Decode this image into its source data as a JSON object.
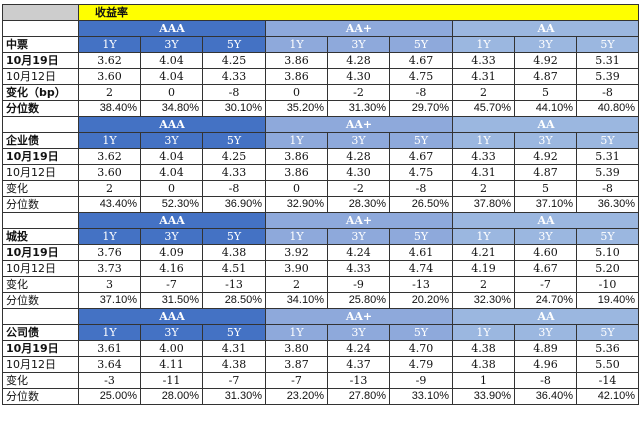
{
  "title": "收益率",
  "group_labels": [
    "AAA",
    "AA+",
    "AA"
  ],
  "tenors": [
    "1Y",
    "3Y",
    "5Y"
  ],
  "row_labels": {
    "date1": "10月19日",
    "date2": "10月12日",
    "change_bp": "变化（bp）",
    "change": "变化",
    "percentile": "分位数"
  },
  "colors": {
    "title_bg": "#ffff00",
    "aaa_bg": "#4472c4",
    "aaplus_bg": "#8ea9db",
    "aa_bg": "#9bb7e0"
  },
  "sections": [
    {
      "name": "中票",
      "rows": [
        {
          "label_key": "date1",
          "values": [
            "3.62",
            "4.04",
            "4.25",
            "3.86",
            "4.28",
            "4.67",
            "4.33",
            "4.92",
            "5.31"
          ]
        },
        {
          "label_key": "date2",
          "values": [
            "3.60",
            "4.04",
            "4.33",
            "3.86",
            "4.30",
            "4.75",
            "4.31",
            "4.87",
            "5.39"
          ]
        },
        {
          "label_key": "change_bp",
          "values": [
            "2",
            "0",
            "-8",
            "0",
            "-2",
            "-8",
            "2",
            "5",
            "-8"
          ]
        },
        {
          "label_key": "percentile",
          "values": [
            "38.40%",
            "34.80%",
            "30.10%",
            "35.20%",
            "31.30%",
            "29.70%",
            "45.70%",
            "44.10%",
            "40.80%"
          ]
        }
      ]
    },
    {
      "name": "企业债",
      "rows": [
        {
          "label_key": "date1",
          "values": [
            "3.62",
            "4.04",
            "4.25",
            "3.86",
            "4.28",
            "4.67",
            "4.33",
            "4.92",
            "5.31"
          ]
        },
        {
          "label_key": "date2",
          "values": [
            "3.60",
            "4.04",
            "4.33",
            "3.86",
            "4.30",
            "4.75",
            "4.31",
            "4.87",
            "5.39"
          ]
        },
        {
          "label_key": "change",
          "values": [
            "2",
            "0",
            "-8",
            "0",
            "-2",
            "-8",
            "2",
            "5",
            "-8"
          ]
        },
        {
          "label_key": "percentile",
          "values": [
            "43.40%",
            "52.30%",
            "36.90%",
            "32.90%",
            "28.30%",
            "26.50%",
            "37.80%",
            "37.10%",
            "36.30%"
          ]
        }
      ]
    },
    {
      "name": "城投",
      "rows": [
        {
          "label_key": "date1",
          "values": [
            "3.76",
            "4.09",
            "4.38",
            "3.92",
            "4.24",
            "4.61",
            "4.21",
            "4.60",
            "5.10"
          ]
        },
        {
          "label_key": "date2",
          "values": [
            "3.73",
            "4.16",
            "4.51",
            "3.90",
            "4.33",
            "4.74",
            "4.19",
            "4.67",
            "5.20"
          ]
        },
        {
          "label_key": "change",
          "values": [
            "3",
            "-7",
            "-13",
            "2",
            "-9",
            "-13",
            "2",
            "-7",
            "-10"
          ]
        },
        {
          "label_key": "percentile",
          "values": [
            "37.10%",
            "31.50%",
            "28.50%",
            "34.10%",
            "25.80%",
            "20.20%",
            "32.30%",
            "24.70%",
            "19.40%"
          ]
        }
      ]
    },
    {
      "name": "公司债",
      "rows": [
        {
          "label_key": "date1",
          "values": [
            "3.61",
            "4.00",
            "4.31",
            "3.80",
            "4.24",
            "4.70",
            "4.38",
            "4.89",
            "5.36"
          ]
        },
        {
          "label_key": "date2",
          "values": [
            "3.64",
            "4.11",
            "4.38",
            "3.87",
            "4.37",
            "4.79",
            "4.38",
            "4.96",
            "5.50"
          ]
        },
        {
          "label_key": "change",
          "values": [
            "-3",
            "-11",
            "-7",
            "-7",
            "-13",
            "-9",
            "1",
            "-8",
            "-14"
          ]
        },
        {
          "label_key": "percentile",
          "values": [
            "25.00%",
            "28.00%",
            "31.30%",
            "23.20%",
            "27.80%",
            "33.10%",
            "33.90%",
            "36.40%",
            "42.10%"
          ]
        }
      ]
    }
  ]
}
